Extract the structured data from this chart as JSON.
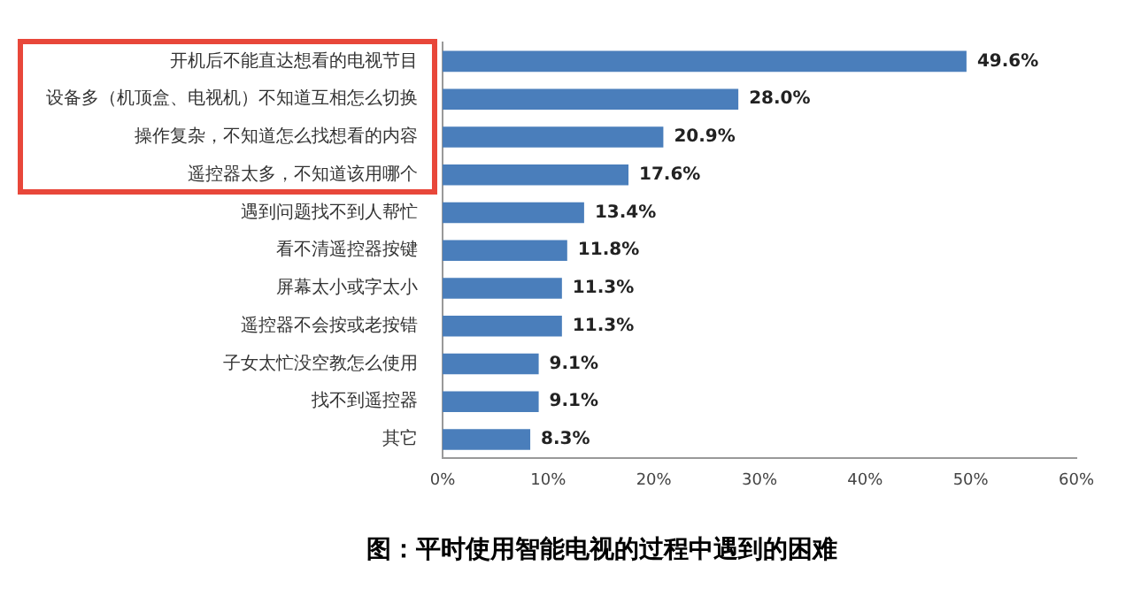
{
  "chart_data": {
    "type": "bar",
    "orientation": "horizontal",
    "title": "图：平时使用智能电视的过程中遇到的困难",
    "categories": [
      "开机后不能直达想看的电视节目",
      "设备多（机顶盒、电视机）不知道互相怎么切换",
      "操作复杂，不知道怎么找想看的内容",
      "遥控器太多，不知道该用哪个",
      "遇到问题找不到人帮忙",
      "看不清遥控器按键",
      "屏幕太小或字太小",
      "遥控器不会按或老按错",
      "子女太忙没空教怎么使用",
      "找不到遥控器",
      "其它"
    ],
    "values": [
      49.6,
      28.0,
      20.9,
      17.6,
      13.4,
      11.8,
      11.3,
      11.3,
      9.1,
      9.1,
      8.3
    ],
    "value_labels": [
      "49.6%",
      "28.0%",
      "20.9%",
      "17.6%",
      "13.4%",
      "11.8%",
      "11.3%",
      "11.3%",
      "9.1%",
      "9.1%",
      "8.3%"
    ],
    "color": "#4a7ebb",
    "xlim": [
      0,
      60
    ],
    "xticks": [
      {
        "value": 0,
        "label": "0%"
      },
      {
        "value": 10,
        "label": "10%"
      },
      {
        "value": 20,
        "label": "20%"
      },
      {
        "value": 30,
        "label": "30%"
      },
      {
        "value": 40,
        "label": "40%"
      },
      {
        "value": 50,
        "label": "50%"
      },
      {
        "value": 60,
        "label": "60%"
      }
    ],
    "grid": false,
    "legend": false
  }
}
